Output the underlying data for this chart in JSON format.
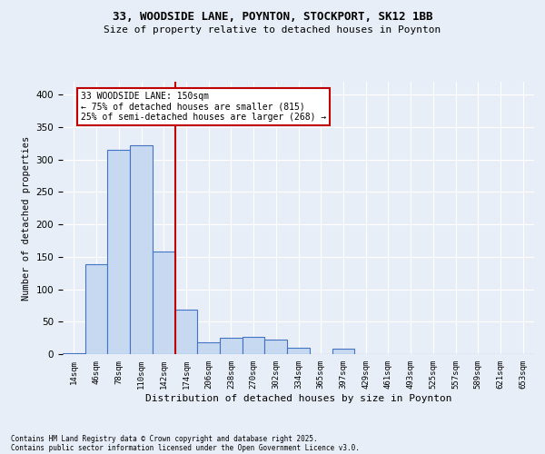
{
  "title1": "33, WOODSIDE LANE, POYNTON, STOCKPORT, SK12 1BB",
  "title2": "Size of property relative to detached houses in Poynton",
  "xlabel": "Distribution of detached houses by size in Poynton",
  "ylabel": "Number of detached properties",
  "bar_categories": [
    "14sqm",
    "46sqm",
    "78sqm",
    "110sqm",
    "142sqm",
    "174sqm",
    "206sqm",
    "238sqm",
    "270sqm",
    "302sqm",
    "334sqm",
    "365sqm",
    "397sqm",
    "429sqm",
    "461sqm",
    "493sqm",
    "525sqm",
    "557sqm",
    "589sqm",
    "621sqm",
    "653sqm"
  ],
  "bar_values": [
    2,
    138,
    315,
    322,
    158,
    68,
    18,
    25,
    27,
    22,
    10,
    0,
    9,
    0,
    0,
    0,
    0,
    0,
    0,
    0,
    0
  ],
  "bar_color": "#c6d9f0",
  "bar_edge_color": "#4472c4",
  "vline_x": 4.5,
  "vline_color": "#c00000",
  "annotation_line1": "33 WOODSIDE LANE: 150sqm",
  "annotation_line2": "← 75% of detached houses are smaller (815)",
  "annotation_line3": "25% of semi-detached houses are larger (268) →",
  "annotation_box_color": "#c00000",
  "ylim": [
    0,
    420
  ],
  "yticks": [
    0,
    50,
    100,
    150,
    200,
    250,
    300,
    350,
    400
  ],
  "background_color": "#e8eef7",
  "grid_color": "#ffffff",
  "footnote1": "Contains HM Land Registry data © Crown copyright and database right 2025.",
  "footnote2": "Contains public sector information licensed under the Open Government Licence v3.0."
}
